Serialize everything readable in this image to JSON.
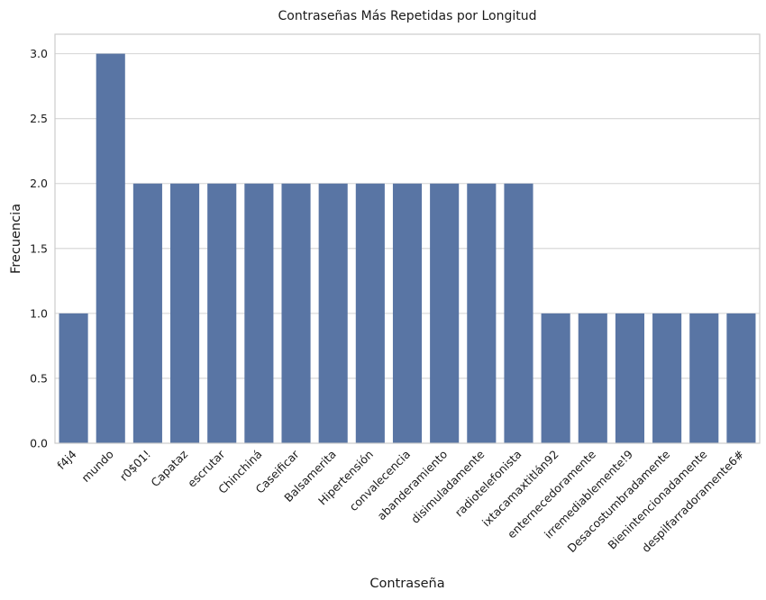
{
  "chart_data": {
    "type": "bar",
    "title": "Contraseñas Más Repetidas por Longitud",
    "xlabel": "Contraseña",
    "ylabel": "Frecuencia",
    "categories": [
      "f4j4",
      "mundo",
      "r0$01!",
      "Capataz",
      "escrutar",
      "Chinchiná",
      "Caseificar",
      "Balsamerita",
      "Hipertensión",
      "convalecencia",
      "abanderamiento",
      "disimuladamente",
      "radiotelefonista",
      "ixtacamaxtitlán92",
      "enternecedoramente",
      "irremediablemente!9",
      "Desacostumbradamente",
      "Bienintencionadamente",
      "despilfarradoramente6#"
    ],
    "values": [
      1,
      3,
      2,
      2,
      2,
      2,
      2,
      2,
      2,
      2,
      2,
      2,
      2,
      1,
      1,
      1,
      1,
      1,
      1
    ],
    "ylim": [
      0,
      3.15
    ],
    "yticks": [
      "0.0",
      "0.5",
      "1.0",
      "1.5",
      "2.0",
      "2.5",
      "3.0"
    ],
    "grid": true,
    "color": "#5975a4"
  }
}
